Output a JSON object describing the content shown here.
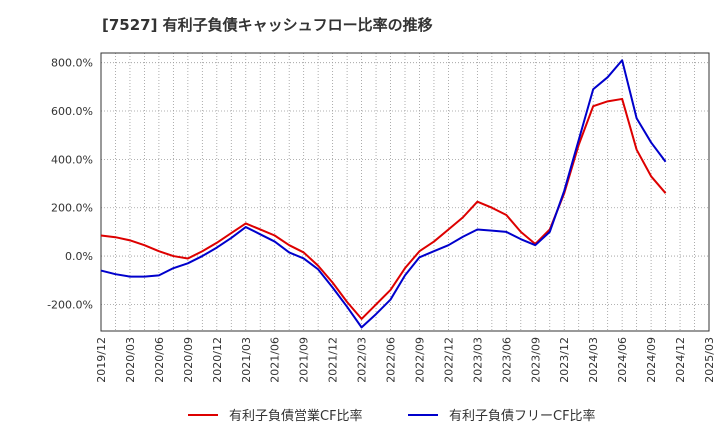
{
  "chart_data": {
    "type": "line",
    "title": "[7527]  有利子負債キャッシュフロー比率の推移",
    "xlabel": "",
    "ylabel": "",
    "x_tick_labels": [
      "2019/12",
      "2020/03",
      "2020/06",
      "2020/09",
      "2020/12",
      "2021/03",
      "2021/06",
      "2021/09",
      "2021/12",
      "2022/03",
      "2022/06",
      "2022/09",
      "2022/12",
      "2023/03",
      "2023/06",
      "2023/09",
      "2023/12",
      "2024/03",
      "2024/06",
      "2024/09",
      "2024/12",
      "2025/03"
    ],
    "y_tick_labels": [
      "-200.0%",
      "0.0%",
      "200.0%",
      "400.0%",
      "600.0%",
      "800.0%"
    ],
    "y_ticks": [
      -200,
      0,
      200,
      400,
      600,
      800
    ],
    "ylim": [
      -310,
      840
    ],
    "grid": true,
    "legend_position": "bottom",
    "series": [
      {
        "name": "有利子負債営業CF比率",
        "color": "#dd0000",
        "values": [
          85,
          78,
          65,
          45,
          20,
          0,
          -10,
          20,
          55,
          95,
          135,
          110,
          85,
          45,
          15,
          -40,
          -110,
          -190,
          -260,
          -200,
          -140,
          -50,
          20,
          60,
          110,
          160,
          225,
          200,
          170,
          100,
          50,
          110,
          260,
          460,
          620,
          640,
          650,
          440,
          330,
          260
        ]
      },
      {
        "name": "有利子負債フリーCF比率",
        "color": "#0000cc",
        "values": [
          -60,
          -75,
          -85,
          -85,
          -80,
          -50,
          -30,
          0,
          35,
          75,
          120,
          90,
          60,
          15,
          -10,
          -55,
          -130,
          -210,
          -295,
          -240,
          -180,
          -80,
          -5,
          20,
          45,
          80,
          110,
          105,
          100,
          70,
          45,
          100,
          270,
          480,
          690,
          740,
          810,
          570,
          470,
          390
        ]
      }
    ]
  }
}
